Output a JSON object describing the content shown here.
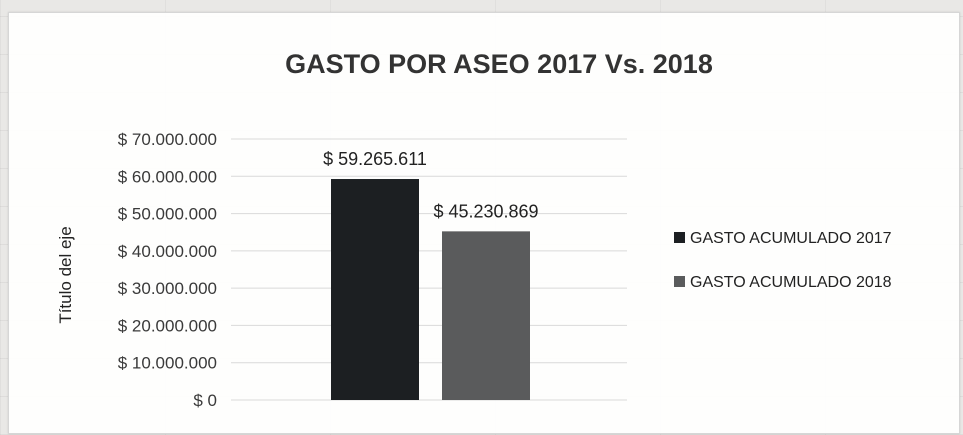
{
  "chart_data": {
    "type": "bar",
    "title": "GASTO POR ASEO 2017 Vs. 2018",
    "ylabel": "Título del eje",
    "xlabel": "",
    "ylim": [
      0,
      70000000
    ],
    "ytick_values": [
      0,
      10000000,
      20000000,
      30000000,
      40000000,
      50000000,
      60000000,
      70000000
    ],
    "ytick_labels": [
      "$ 0",
      "$ 10.000.000",
      "$ 20.000.000",
      "$ 30.000.000",
      "$ 40.000.000",
      "$ 50.000.000",
      "$ 60.000.000",
      "$ 70.000.000"
    ],
    "grid": true,
    "legend": "right",
    "series": [
      {
        "name": "GASTO ACUMULADO 2017",
        "values": [
          59265611
        ],
        "label": "$ 59.265.611",
        "color": "#1c1f22"
      },
      {
        "name": "GASTO ACUMULADO 2018",
        "values": [
          45230869
        ],
        "label": "$ 45.230.869",
        "color": "#5a5b5c"
      }
    ]
  }
}
